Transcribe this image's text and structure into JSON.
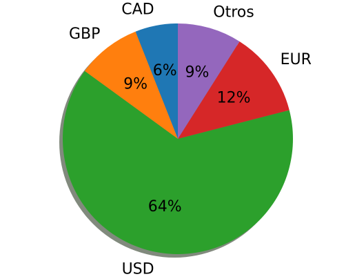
{
  "chart_data": {
    "type": "pie",
    "title": "",
    "start_angle_deg": 90,
    "direction": "counterclockwise",
    "shadow": true,
    "slices": [
      {
        "label": "CAD",
        "value": 6,
        "pct_text": "6%",
        "color": "#1f77b4"
      },
      {
        "label": "GBP",
        "value": 9,
        "pct_text": "9%",
        "color": "#ff7f0e"
      },
      {
        "label": "USD",
        "value": 64,
        "pct_text": "64%",
        "color": "#2ca02c"
      },
      {
        "label": "EUR",
        "value": 12,
        "pct_text": "12%",
        "color": "#d62728"
      },
      {
        "label": "Otros",
        "value": 9,
        "pct_text": "9%",
        "color": "#9467bd"
      }
    ]
  }
}
